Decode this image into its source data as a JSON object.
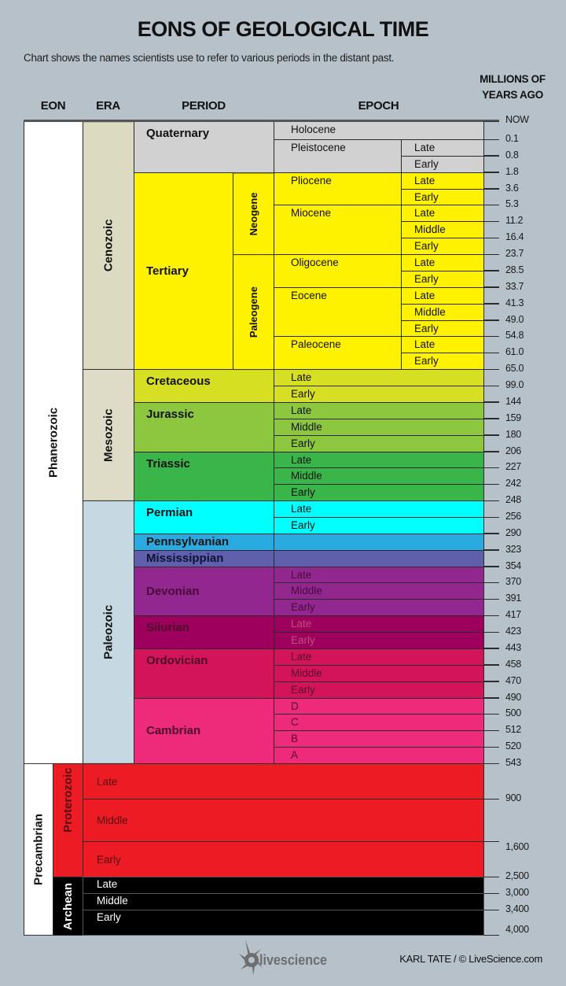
{
  "title": "EONS OF GEOLOGICAL TIME",
  "subtitle": "Chart shows the names scientists use to refer to various periods in the distant past.",
  "headers": {
    "eon": "EON",
    "era": "ERA",
    "period": "PERIOD",
    "epoch": "EPOCH",
    "age_line1": "MILLIONS OF",
    "age_line2": "YEARS AGO"
  },
  "ages": [
    "NOW",
    "0.1",
    "0.8",
    "1.8",
    "3.6",
    "5.3",
    "11.2",
    "16.4",
    "23.7",
    "28.5",
    "33.7",
    "41.3",
    "49.0",
    "54.8",
    "61.0",
    "65.0",
    "99.0",
    "144",
    "159",
    "180",
    "206",
    "227",
    "242",
    "248",
    "256",
    "290",
    "323",
    "354",
    "370",
    "391",
    "417",
    "423",
    "443",
    "458",
    "470",
    "490",
    "500",
    "512",
    "520",
    "543",
    "900",
    "1,600",
    "2,500",
    "3,000",
    "3,400",
    "4,000"
  ],
  "eons": [
    {
      "name": "Phanerozoic",
      "from": "NOW",
      "to": "543",
      "color": "#ffffff"
    },
    {
      "name": "Precambrian",
      "from": "543",
      "to": "4,000",
      "color": "#ffffff"
    }
  ],
  "eras": [
    {
      "name": "Cenozoic",
      "from": "NOW",
      "to": "65.0",
      "color": "#dcdac0",
      "text_color": "#111111"
    },
    {
      "name": "Mesozoic",
      "from": "65.0",
      "to": "248",
      "color": "#dedbc6",
      "text_color": "#111111"
    },
    {
      "name": "Paleozoic",
      "from": "248",
      "to": "543",
      "color": "#c6d8e2",
      "text_color": "#111111"
    },
    {
      "name": "Proterozoic",
      "from": "543",
      "to": "2,500",
      "color": "#ed1c24",
      "text_color": "#5a0a14"
    },
    {
      "name": "Archean",
      "from": "2,500",
      "to": "4,000",
      "color": "#000000",
      "text_color": "#ffffff"
    }
  ],
  "periods": [
    {
      "name": "Quaternary",
      "from": "NOW",
      "to": "1.8",
      "color": "#d1d1d1",
      "text_color": "#111111"
    },
    {
      "name": "Tertiary",
      "from": "1.8",
      "to": "65.0",
      "color": "#fff200",
      "text_color": "#111111",
      "middle": true
    },
    {
      "name": "Cretaceous",
      "from": "65.0",
      "to": "144",
      "color": "#d7df23",
      "text_color": "#111111"
    },
    {
      "name": "Jurassic",
      "from": "144",
      "to": "206",
      "color": "#8dc63f",
      "text_color": "#111111"
    },
    {
      "name": "Triassic",
      "from": "206",
      "to": "248",
      "color": "#39b54a",
      "text_color": "#111111"
    },
    {
      "name": "Permian",
      "from": "248",
      "to": "290",
      "color": "#00ffff",
      "text_color": "#111111"
    },
    {
      "name": "Pennsylvanian",
      "from": "290",
      "to": "323",
      "color": "#29abe2",
      "text_color": "#111111"
    },
    {
      "name": "Mississippian",
      "from": "323",
      "to": "354",
      "color": "#5f5fab",
      "text_color": "#111133"
    },
    {
      "name": "Devonian",
      "from": "354",
      "to": "417",
      "color": "#92278f",
      "text_color": "#4a0a3a",
      "middle": true
    },
    {
      "name": "Silurian",
      "from": "417",
      "to": "443",
      "color": "#9e005d",
      "text_color": "#4a0a2a"
    },
    {
      "name": "Ordovician",
      "from": "443",
      "to": "490",
      "color": "#d4145a",
      "text_color": "#4a0a2a"
    },
    {
      "name": "Cambrian",
      "from": "490",
      "to": "543",
      "color": "#ee2a7b",
      "text_color": "#4a0a2a",
      "middle": true
    }
  ],
  "subperiods": [
    {
      "name": "Neogene",
      "from": "1.8",
      "to": "23.7",
      "color": "#fff200"
    },
    {
      "name": "Paleogene",
      "from": "23.7",
      "to": "65.0",
      "color": "#fff200"
    }
  ],
  "cenozoic_epochs": [
    {
      "name": "Holocene",
      "from": "NOW",
      "to": "0.1",
      "color": "#d1d1d1",
      "full": true
    },
    {
      "name": "Pleistocene",
      "from": "0.1",
      "to": "1.8",
      "color": "#d1d1d1"
    },
    {
      "name": "Pliocene",
      "from": "1.8",
      "to": "5.3",
      "color": "#fff200"
    },
    {
      "name": "Miocene",
      "from": "5.3",
      "to": "23.7",
      "color": "#fff200"
    },
    {
      "name": "Oligocene",
      "from": "23.7",
      "to": "33.7",
      "color": "#fff200"
    },
    {
      "name": "Eocene",
      "from": "33.7",
      "to": "54.8",
      "color": "#fff200"
    },
    {
      "name": "Paleocene",
      "from": "54.8",
      "to": "65.0",
      "color": "#fff200"
    }
  ],
  "cenozoic_subepochs": [
    {
      "name": "Late",
      "from": "0.1",
      "to": "0.8",
      "color": "#d1d1d1"
    },
    {
      "name": "Early",
      "from": "0.8",
      "to": "1.8",
      "color": "#d1d1d1"
    },
    {
      "name": "Late",
      "from": "1.8",
      "to": "3.6",
      "color": "#fff200"
    },
    {
      "name": "Early",
      "from": "3.6",
      "to": "5.3",
      "color": "#fff200"
    },
    {
      "name": "Late",
      "from": "5.3",
      "to": "11.2",
      "color": "#fff200"
    },
    {
      "name": "Middle",
      "from": "11.2",
      "to": "16.4",
      "color": "#fff200"
    },
    {
      "name": "Early",
      "from": "16.4",
      "to": "23.7",
      "color": "#fff200"
    },
    {
      "name": "Late",
      "from": "23.7",
      "to": "28.5",
      "color": "#fff200"
    },
    {
      "name": "Early",
      "from": "28.5",
      "to": "33.7",
      "color": "#fff200"
    },
    {
      "name": "Late",
      "from": "33.7",
      "to": "41.3",
      "color": "#fff200"
    },
    {
      "name": "Middle",
      "from": "41.3",
      "to": "49.0",
      "color": "#fff200"
    },
    {
      "name": "Early",
      "from": "49.0",
      "to": "54.8",
      "color": "#fff200"
    },
    {
      "name": "Late",
      "from": "54.8",
      "to": "61.0",
      "color": "#fff200"
    },
    {
      "name": "Early",
      "from": "61.0",
      "to": "65.0",
      "color": "#fff200"
    }
  ],
  "epochs": [
    {
      "name": "Late",
      "from": "65.0",
      "to": "99.0",
      "color": "#d7df23",
      "text_color": "#111111"
    },
    {
      "name": "Early",
      "from": "99.0",
      "to": "144",
      "color": "#d7df23",
      "text_color": "#111111"
    },
    {
      "name": "Late",
      "from": "144",
      "to": "159",
      "color": "#8dc63f",
      "text_color": "#111111"
    },
    {
      "name": "Middle",
      "from": "159",
      "to": "180",
      "color": "#8dc63f",
      "text_color": "#111111"
    },
    {
      "name": "Early",
      "from": "180",
      "to": "206",
      "color": "#8dc63f",
      "text_color": "#111111"
    },
    {
      "name": "Late",
      "from": "206",
      "to": "227",
      "color": "#39b54a",
      "text_color": "#111111"
    },
    {
      "name": "Middle",
      "from": "227",
      "to": "242",
      "color": "#39b54a",
      "text_color": "#111111"
    },
    {
      "name": "Early",
      "from": "242",
      "to": "248",
      "color": "#39b54a",
      "text_color": "#111111"
    },
    {
      "name": "Late",
      "from": "248",
      "to": "256",
      "color": "#00ffff",
      "text_color": "#111111"
    },
    {
      "name": "Early",
      "from": "256",
      "to": "290",
      "color": "#00ffff",
      "text_color": "#111111"
    },
    {
      "name": "",
      "from": "290",
      "to": "323",
      "color": "#29abe2",
      "text_color": "#111111"
    },
    {
      "name": "",
      "from": "323",
      "to": "354",
      "color": "#5f5fab",
      "text_color": "#111111"
    },
    {
      "name": "Late",
      "from": "354",
      "to": "370",
      "color": "#92278f",
      "text_color": "#4a0a3a"
    },
    {
      "name": "Middle",
      "from": "370",
      "to": "391",
      "color": "#92278f",
      "text_color": "#4a0a3a"
    },
    {
      "name": "Early",
      "from": "391",
      "to": "417",
      "color": "#92278f",
      "text_color": "#4a0a3a"
    },
    {
      "name": "Late",
      "from": "417",
      "to": "423",
      "color": "#9e005d",
      "text_color": "#c0507a"
    },
    {
      "name": "Early",
      "from": "423",
      "to": "443",
      "color": "#9e005d",
      "text_color": "#c0507a"
    },
    {
      "name": "Late",
      "from": "443",
      "to": "458",
      "color": "#d4145a",
      "text_color": "#5a0a2a"
    },
    {
      "name": "Middle",
      "from": "458",
      "to": "470",
      "color": "#d4145a",
      "text_color": "#5a0a2a"
    },
    {
      "name": "Early",
      "from": "470",
      "to": "490",
      "color": "#d4145a",
      "text_color": "#5a0a2a"
    },
    {
      "name": "D",
      "from": "490",
      "to": "500",
      "color": "#ee2a7b",
      "text_color": "#5a0a2a"
    },
    {
      "name": "C",
      "from": "500",
      "to": "512",
      "color": "#ee2a7b",
      "text_color": "#5a0a2a"
    },
    {
      "name": "B",
      "from": "512",
      "to": "520",
      "color": "#ee2a7b",
      "text_color": "#5a0a2a"
    },
    {
      "name": "A",
      "from": "520",
      "to": "543",
      "color": "#ee2a7b",
      "text_color": "#5a0a2a"
    }
  ],
  "precambrian_divisions": [
    {
      "name": "Late",
      "from": "543",
      "to": "900",
      "color": "#ed1c24",
      "text_color": "#5a0a14"
    },
    {
      "name": "Middle",
      "from": "900",
      "to": "1,600",
      "color": "#ed1c24",
      "text_color": "#5a0a14"
    },
    {
      "name": "Early",
      "from": "1,600",
      "to": "2,500",
      "color": "#ed1c24",
      "text_color": "#5a0a14"
    },
    {
      "name": "Late",
      "from": "2,500",
      "to": "3,000",
      "color": "#000000",
      "text_color": "#ffffff"
    },
    {
      "name": "Middle",
      "from": "3,000",
      "to": "3,400",
      "color": "#000000",
      "text_color": "#ffffff"
    },
    {
      "name": "Early",
      "from": "3,400",
      "to": "4,000",
      "color": "#000000",
      "text_color": "#ffffff"
    }
  ],
  "logo_text": "livescience",
  "credit": "KARL TATE / © LiveScience.com"
}
